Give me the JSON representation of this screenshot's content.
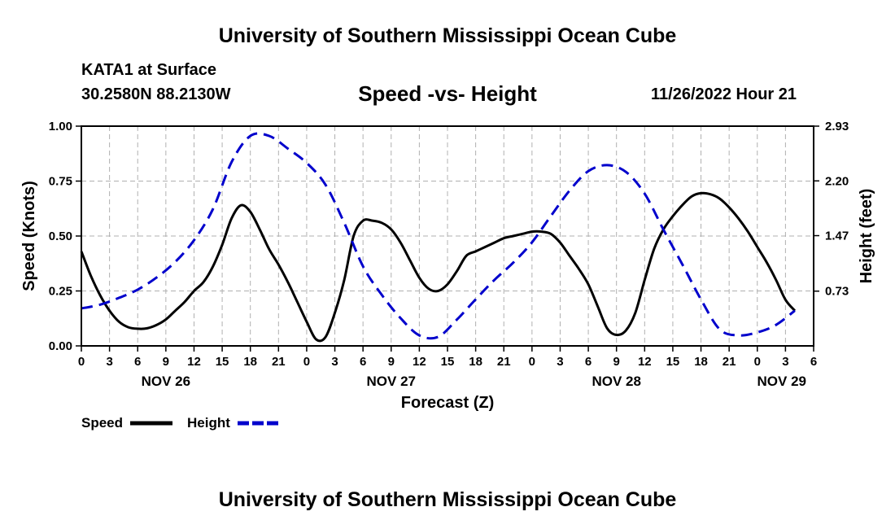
{
  "header": {
    "title": "University of Southern Mississippi Ocean Cube",
    "station": "KATA1 at Surface",
    "coords": "30.2580N  88.2130W",
    "datetime": "11/26/2022 Hour 21",
    "footer_title": "University of Southern Mississippi Ocean Cube"
  },
  "chart_data": {
    "type": "line",
    "title": "Speed -vs- Height",
    "xlabel": "Forecast (Z)",
    "ylabel_left": "Speed (Knots)",
    "ylabel_right": "Height (feet)",
    "ylim_left": [
      0,
      1.0
    ],
    "ylim_right": [
      0,
      2.93
    ],
    "yticks_left": [
      "0.00",
      "0.25",
      "0.50",
      "0.75",
      "1.00"
    ],
    "yticks_right": [
      "0.73",
      "1.47",
      "2.20",
      "2.93"
    ],
    "x_hours": [
      0,
      3,
      6,
      9,
      12,
      15,
      18,
      21,
      24,
      27,
      30,
      33,
      36,
      39,
      42,
      45,
      48,
      51,
      54,
      57,
      60,
      63,
      66,
      69,
      72,
      75,
      78
    ],
    "x_tick_labels": [
      "0",
      "3",
      "6",
      "9",
      "12",
      "15",
      "18",
      "21",
      "0",
      "3",
      "6",
      "9",
      "12",
      "15",
      "18",
      "21",
      "0",
      "3",
      "6",
      "9",
      "12",
      "15",
      "18",
      "21",
      "0",
      "3",
      "6"
    ],
    "day_labels": [
      {
        "hour": 9,
        "label": "NOV 26"
      },
      {
        "hour": 33,
        "label": "NOV 27"
      },
      {
        "hour": 57,
        "label": "NOV 28"
      },
      {
        "hour": 72,
        "label": "NOV 29"
      }
    ],
    "grid": true,
    "legend_position": "bottom-left",
    "series": [
      {
        "name": "Speed",
        "axis": "left",
        "color": "#000000",
        "style": "solid",
        "points": [
          [
            0,
            0.43
          ],
          [
            1,
            0.32
          ],
          [
            2,
            0.23
          ],
          [
            3,
            0.16
          ],
          [
            4,
            0.11
          ],
          [
            5,
            0.085
          ],
          [
            6,
            0.078
          ],
          [
            7,
            0.08
          ],
          [
            8,
            0.095
          ],
          [
            9,
            0.12
          ],
          [
            10,
            0.16
          ],
          [
            11,
            0.2
          ],
          [
            12,
            0.25
          ],
          [
            13,
            0.29
          ],
          [
            14,
            0.36
          ],
          [
            15,
            0.46
          ],
          [
            16,
            0.58
          ],
          [
            17,
            0.64
          ],
          [
            18,
            0.61
          ],
          [
            19,
            0.53
          ],
          [
            20,
            0.44
          ],
          [
            21,
            0.37
          ],
          [
            22,
            0.29
          ],
          [
            23,
            0.2
          ],
          [
            24,
            0.11
          ],
          [
            25,
            0.03
          ],
          [
            26,
            0.04
          ],
          [
            27,
            0.15
          ],
          [
            28,
            0.3
          ],
          [
            29,
            0.5
          ],
          [
            30,
            0.57
          ],
          [
            31,
            0.57
          ],
          [
            32,
            0.56
          ],
          [
            33,
            0.53
          ],
          [
            34,
            0.47
          ],
          [
            35,
            0.39
          ],
          [
            36,
            0.31
          ],
          [
            37,
            0.26
          ],
          [
            38,
            0.25
          ],
          [
            39,
            0.28
          ],
          [
            40,
            0.34
          ],
          [
            41,
            0.41
          ],
          [
            42,
            0.43
          ],
          [
            43,
            0.45
          ],
          [
            44,
            0.47
          ],
          [
            45,
            0.49
          ],
          [
            46,
            0.5
          ],
          [
            47,
            0.51
          ],
          [
            48,
            0.52
          ],
          [
            49,
            0.52
          ],
          [
            50,
            0.51
          ],
          [
            51,
            0.47
          ],
          [
            52,
            0.41
          ],
          [
            53,
            0.35
          ],
          [
            54,
            0.28
          ],
          [
            55,
            0.18
          ],
          [
            56,
            0.08
          ],
          [
            57,
            0.05
          ],
          [
            58,
            0.07
          ],
          [
            59,
            0.15
          ],
          [
            60,
            0.3
          ],
          [
            61,
            0.44
          ],
          [
            62,
            0.53
          ],
          [
            63,
            0.59
          ],
          [
            64,
            0.64
          ],
          [
            65,
            0.68
          ],
          [
            66,
            0.695
          ],
          [
            67,
            0.69
          ],
          [
            68,
            0.67
          ],
          [
            69,
            0.63
          ],
          [
            70,
            0.58
          ],
          [
            71,
            0.52
          ],
          [
            72,
            0.45
          ],
          [
            73,
            0.38
          ],
          [
            74,
            0.3
          ],
          [
            75,
            0.21
          ],
          [
            76,
            0.16
          ]
        ]
      },
      {
        "name": "Height",
        "axis": "right",
        "color": "#0000cc",
        "style": "dashed",
        "points": [
          [
            0,
            0.5
          ],
          [
            2,
            0.55
          ],
          [
            4,
            0.64
          ],
          [
            6,
            0.75
          ],
          [
            8,
            0.91
          ],
          [
            10,
            1.12
          ],
          [
            12,
            1.41
          ],
          [
            14,
            1.82
          ],
          [
            16,
            2.45
          ],
          [
            18,
            2.8
          ],
          [
            20,
            2.8
          ],
          [
            22,
            2.63
          ],
          [
            24,
            2.44
          ],
          [
            26,
            2.15
          ],
          [
            28,
            1.64
          ],
          [
            30,
            1.06
          ],
          [
            32,
            0.68
          ],
          [
            34,
            0.37
          ],
          [
            36,
            0.14
          ],
          [
            38,
            0.12
          ],
          [
            40,
            0.35
          ],
          [
            42,
            0.62
          ],
          [
            44,
            0.88
          ],
          [
            46,
            1.11
          ],
          [
            48,
            1.38
          ],
          [
            50,
            1.73
          ],
          [
            52,
            2.07
          ],
          [
            54,
            2.33
          ],
          [
            56,
            2.41
          ],
          [
            58,
            2.32
          ],
          [
            60,
            2.03
          ],
          [
            62,
            1.55
          ],
          [
            64,
            1.09
          ],
          [
            66,
            0.62
          ],
          [
            68,
            0.22
          ],
          [
            70,
            0.14
          ],
          [
            72,
            0.18
          ],
          [
            74,
            0.28
          ],
          [
            76,
            0.47
          ]
        ]
      }
    ]
  }
}
